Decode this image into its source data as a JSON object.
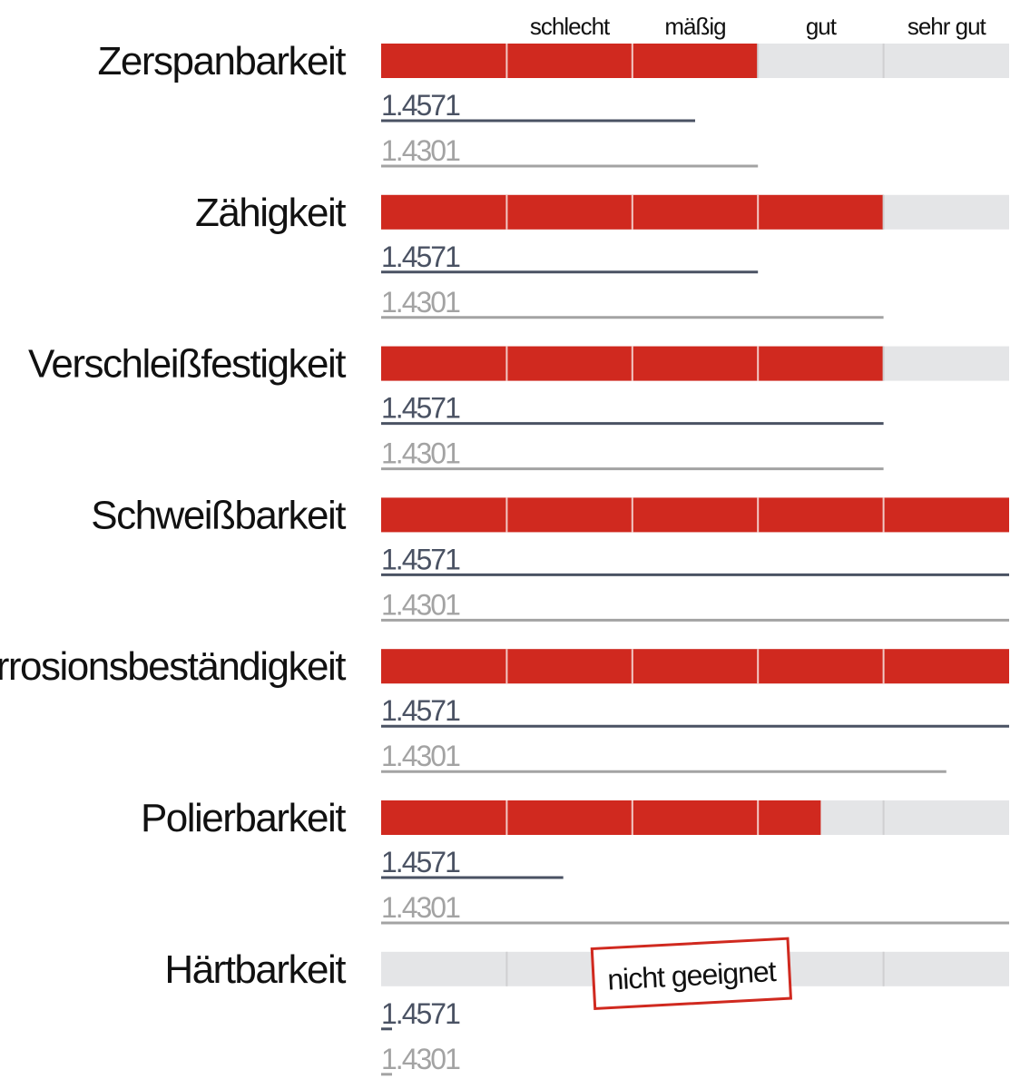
{
  "chart_data": {
    "type": "bar",
    "scale_labels": [
      "schlecht",
      "mäßig",
      "gut",
      "sehr gut"
    ],
    "scale_max": 5,
    "series": [
      {
        "name": "1.4571",
        "color": "#4a5263"
      },
      {
        "name": "1.4301",
        "color": "#a3a3a3"
      }
    ],
    "bar_color": "#d0291f",
    "track_color": "#e4e5e7",
    "categories": [
      {
        "label": "Zerspanbarkeit",
        "bar": 3.0,
        "values": [
          2.5,
          3.0
        ]
      },
      {
        "label": "Zähigkeit",
        "bar": 4.0,
        "values": [
          3.0,
          4.0
        ]
      },
      {
        "label": "Verschleißfestigkeit",
        "bar": 4.0,
        "values": [
          4.0,
          4.0
        ]
      },
      {
        "label": "Schweißbarkeit",
        "bar": 5.0,
        "values": [
          5.0,
          5.0
        ]
      },
      {
        "label": "Korrosionsbeständigkeit",
        "bar": 5.0,
        "values": [
          5.0,
          4.5
        ]
      },
      {
        "label": "Polierbarkeit",
        "bar": 3.5,
        "values": [
          1.45,
          5.0
        ]
      },
      {
        "label": "Härtbarkeit",
        "bar": 0,
        "values": [
          0,
          0
        ],
        "note": "nicht geeignet"
      }
    ]
  }
}
